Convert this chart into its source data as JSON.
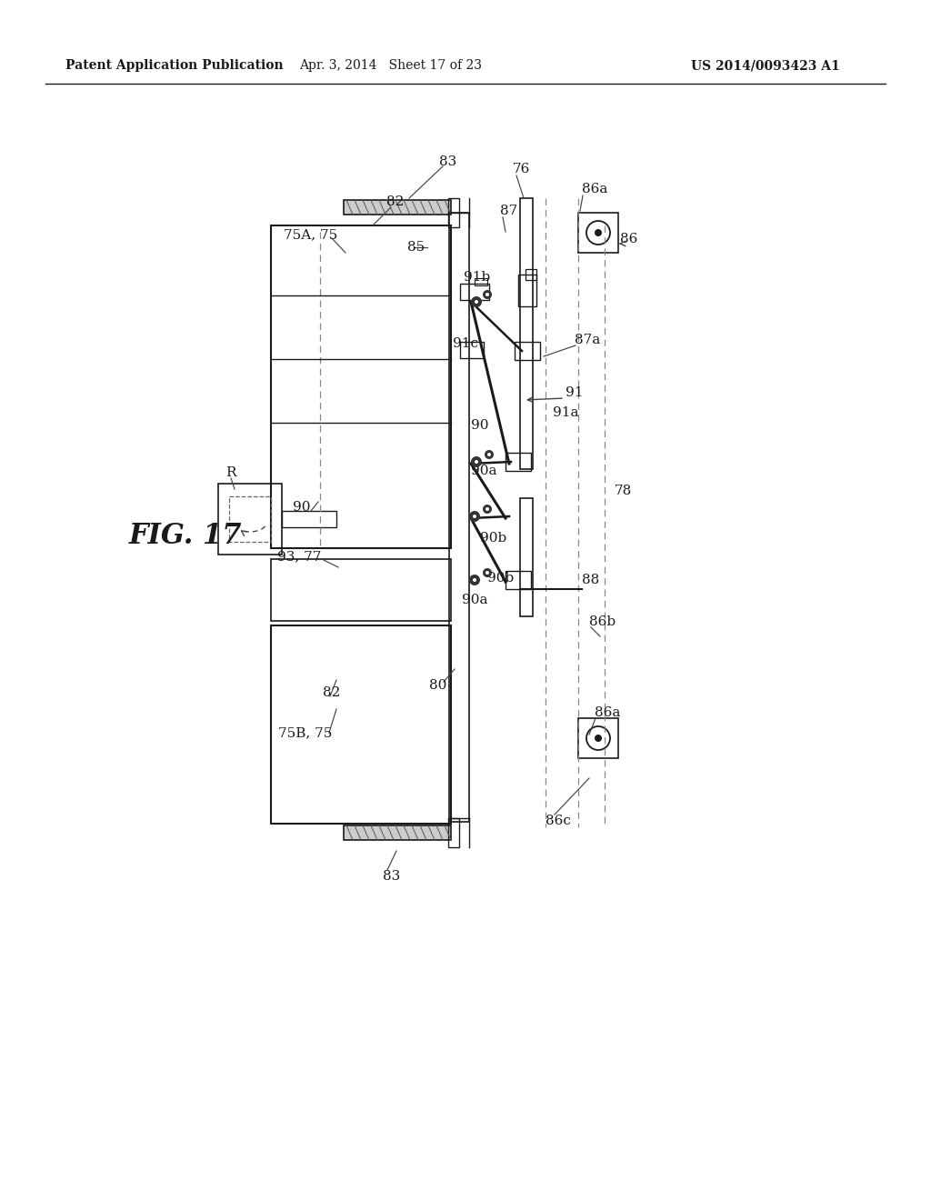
{
  "bg_color": "#ffffff",
  "line_color": "#1a1a1a",
  "header_left": "Patent Application Publication",
  "header_center": "Apr. 3, 2014   Sheet 17 of 23",
  "header_right": "US 2014/0093423 A1",
  "fig_label": "FIG. 17"
}
